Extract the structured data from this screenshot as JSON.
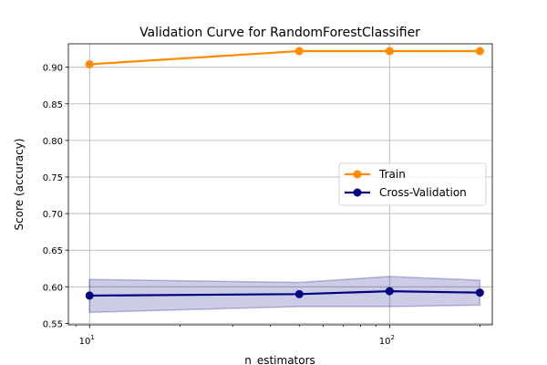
{
  "chart_data": {
    "type": "line",
    "title": "Validation Curve for RandomForestClassifier",
    "xlabel": "n_estimators",
    "ylabel": "Score (accuracy)",
    "x_scale": "log",
    "xlim": [
      8.5,
      220
    ],
    "ylim": [
      0.548,
      0.932
    ],
    "y_ticks": [
      0.55,
      0.6,
      0.65,
      0.7,
      0.75,
      0.8,
      0.85,
      0.9
    ],
    "y_tick_labels": [
      "0.55",
      "0.60",
      "0.65",
      "0.70",
      "0.75",
      "0.80",
      "0.85",
      "0.90"
    ],
    "x_ticks": [
      10,
      100
    ],
    "x_tick_labels": [
      {
        "base": "10",
        "exp": "1"
      },
      {
        "base": "10",
        "exp": "2"
      }
    ],
    "grid": true,
    "legend_position": "center-right",
    "x": [
      10,
      50,
      100,
      200
    ],
    "series": [
      {
        "name": "Train",
        "color": "#ff8c00",
        "values": [
          0.904,
          0.922,
          0.922,
          0.922
        ],
        "band_upper": [
          0.904,
          0.922,
          0.922,
          0.922
        ],
        "band_lower": [
          0.904,
          0.922,
          0.922,
          0.922
        ]
      },
      {
        "name": "Cross-Validation",
        "color": "#000080",
        "band_color": "#000080",
        "values": [
          0.588,
          0.59,
          0.594,
          0.592
        ],
        "band_upper": [
          0.61,
          0.606,
          0.614,
          0.609
        ],
        "band_lower": [
          0.565,
          0.573,
          0.573,
          0.575
        ]
      }
    ]
  }
}
